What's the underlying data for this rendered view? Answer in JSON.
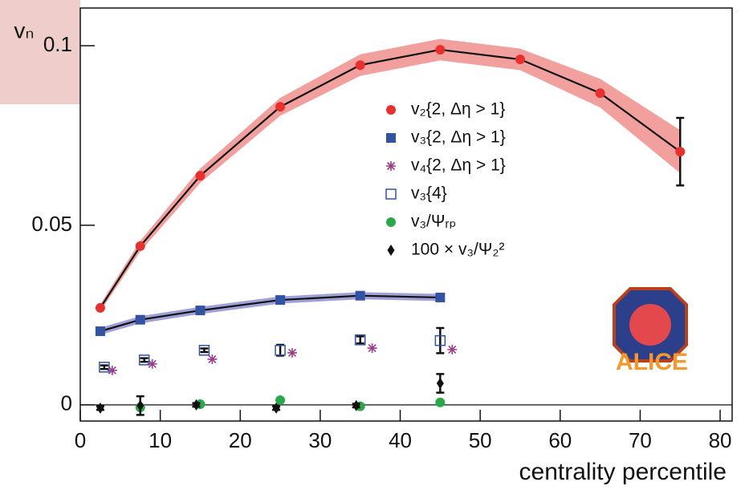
{
  "chart_data": {
    "type": "scatter",
    "ylabel": "vₙ",
    "xlabel": "centrality percentile",
    "logo_text": "ALICE",
    "xlim": [
      0,
      81.5
    ],
    "ylim": [
      -0.0045,
      0.1105
    ],
    "xticks": [
      0,
      10,
      20,
      30,
      40,
      50,
      60,
      70,
      80
    ],
    "yticks": [
      0,
      0.05,
      0.1
    ],
    "grid": false,
    "zero_line": true,
    "series": [
      {
        "name": "v₂{2, Δη > 1}",
        "color": "#e8302f",
        "marker": "circle",
        "line": true,
        "band_color": "#f08f8c",
        "x": [
          2.5,
          7.5,
          15,
          25,
          35,
          45,
          55,
          65,
          75
        ],
        "values": [
          0.027,
          0.0442,
          0.0638,
          0.083,
          0.0946,
          0.0989,
          0.0962,
          0.0868,
          0.0705
        ],
        "band": [
          0.001,
          0.0015,
          0.002,
          0.0025,
          0.003,
          0.003,
          0.003,
          0.004,
          0.006
        ],
        "errors": [
          0,
          0,
          0,
          0,
          0,
          0,
          0,
          0,
          0.0094
        ]
      },
      {
        "name": "v₃{2, Δη > 1}",
        "color": "#3352a3",
        "marker": "square",
        "line": true,
        "band_color": "#8d8fd0",
        "x": [
          2.5,
          7.5,
          15,
          25,
          35,
          45
        ],
        "values": [
          0.0205,
          0.0237,
          0.0263,
          0.0292,
          0.0304,
          0.0299
        ],
        "band": [
          0.001,
          0.001,
          0.001,
          0.001,
          0.001,
          0.001
        ]
      },
      {
        "name": "v₄{2, Δη > 1}",
        "color": "#9b3c8c",
        "marker": "star",
        "x": [
          4,
          9,
          16.5,
          26.5,
          36.5,
          46.5
        ],
        "values": [
          0.0096,
          0.0114,
          0.0127,
          0.0145,
          0.0158,
          0.0154
        ]
      },
      {
        "name": "v₃{4}",
        "color": "#3352a3",
        "marker": "open-square",
        "x": [
          3,
          8,
          15.5,
          25,
          35,
          45
        ],
        "values": [
          0.0105,
          0.0125,
          0.0152,
          0.0152,
          0.0181,
          0.0179
        ],
        "errors": [
          0.0005,
          0.0005,
          0.0005,
          0.0015,
          0.001,
          0.0035
        ]
      },
      {
        "name": "v₃/Ψᵣₚ",
        "color": "#2aa84a",
        "marker": "circle",
        "x": [
          7.5,
          15,
          25,
          35,
          45
        ],
        "values": [
          -0.0007,
          0.0002,
          0.0013,
          -0.0004,
          0.0007
        ]
      },
      {
        "name": "100 × v₃/Ψ₂²",
        "color": "#111111",
        "marker": "diamond",
        "x": [
          2.5,
          7.5,
          14.5,
          24.5,
          34.5,
          45
        ],
        "values": [
          -0.0009,
          -0.0002,
          0,
          -0.0009,
          -0.0002,
          0.006
        ],
        "errors": [
          0.0005,
          0.0026,
          0.0005,
          0.0005,
          0.0005,
          0.0026
        ]
      }
    ]
  }
}
